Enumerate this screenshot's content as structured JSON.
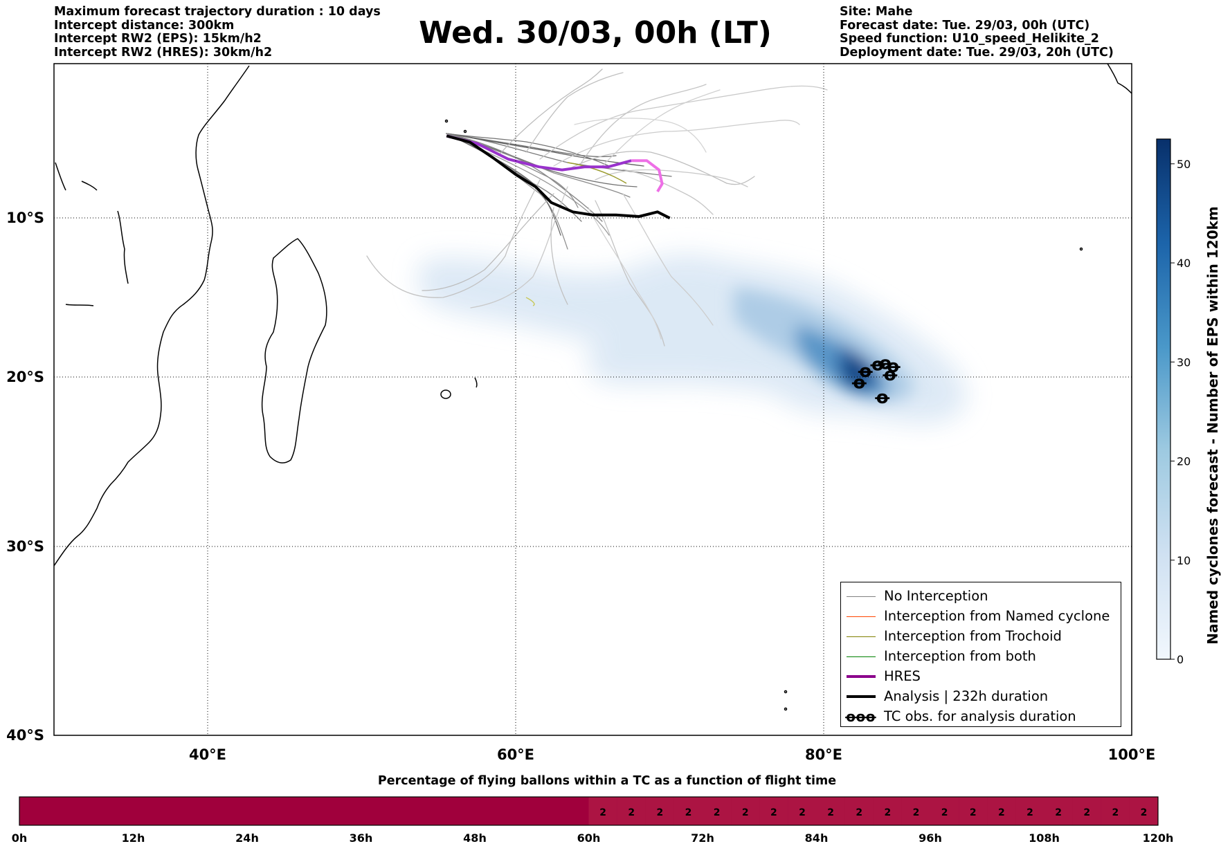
{
  "header": {
    "left_lines": [
      "Maximum forecast trajectory duration : 10 days",
      "Intercept distance: 300km",
      "Intercept RW2 (EPS):  15km/h2",
      "Intercept RW2 (HRES): 30km/h2"
    ],
    "title": "Wed. 30/03, 00h (LT)",
    "right_lines": [
      "Site: Mahe",
      "Forecast date: Tue. 29/03, 00h (UTC)",
      "Speed function: U10_speed_Helikite_2",
      "Deployment date: Tue. 29/03, 20h (UTC)"
    ]
  },
  "map": {
    "lon_ticks": [
      "40°E",
      "60°E",
      "80°E",
      "100°E"
    ],
    "lat_ticks": [
      "10°S",
      "20°S",
      "30°S",
      "40°S"
    ]
  },
  "legend": {
    "items": [
      {
        "label": "No Interception",
        "color": "#808080",
        "symbol": "line"
      },
      {
        "label": "Interception from Named cyclone",
        "color": "#ff4500",
        "symbol": "line"
      },
      {
        "label": "Interception from Trochoid",
        "color": "#808000",
        "symbol": "line"
      },
      {
        "label": "Interception from both",
        "color": "#008000",
        "symbol": "line"
      },
      {
        "label": "HRES",
        "color": "#8b008b",
        "symbol": "thick"
      },
      {
        "label": "Analysis | 232h duration",
        "color": "#000000",
        "symbol": "thick"
      },
      {
        "label": "TC obs. for analysis duration",
        "color": "#000000",
        "symbol": "ꝋꝋꝋ"
      }
    ]
  },
  "colorbar": {
    "label": "Named cyclones forecast - Number of EPS within 120km",
    "ticks": [
      "0",
      "10",
      "20",
      "30",
      "40",
      "50"
    ],
    "colors": {
      "low": "#f1f7fd",
      "high": "#08306b"
    }
  },
  "bottom_bar": {
    "title": "Percentage of flying ballons within a TC as a function of flight time",
    "tick_labels": [
      "0h",
      "12h",
      "24h",
      "36h",
      "48h",
      "60h",
      "72h",
      "84h",
      "96h",
      "108h",
      "120h"
    ],
    "cell_values": [
      "2",
      "2",
      "2",
      "2",
      "2",
      "2",
      "2",
      "2",
      "2",
      "2",
      "2",
      "2",
      "2",
      "2",
      "2",
      "2",
      "2",
      "2",
      "2",
      "2"
    ],
    "colors": {
      "dark": "#a0003c",
      "light": "#ac1443"
    }
  },
  "chart_data": [
    {
      "type": "map",
      "title": "Wed. 30/03, 00h (LT)",
      "xlim_lon": [
        30,
        100
      ],
      "ylim_lat": [
        -40,
        0
      ],
      "x_ticks": [
        40,
        60,
        80,
        100
      ],
      "y_ticks": [
        -10,
        -20,
        -30,
        -40
      ],
      "grid": true,
      "legend_position": "bottom-right",
      "series": [
        {
          "name": "HRES",
          "lon": [
            55.5,
            57.5,
            59.5,
            61.5,
            63,
            64.5,
            66,
            67.5,
            68.5,
            69.3,
            69.5,
            69.2
          ],
          "lat": [
            -4.7,
            -5.2,
            -6.2,
            -6.7,
            -6.9,
            -6.7,
            -6.7,
            -6.3,
            -6.3,
            -6.9,
            -7.8,
            -8.3
          ]
        },
        {
          "name": "Analysis | 232h duration",
          "lon": [
            55.5,
            57,
            58.5,
            60,
            61.3,
            62.3,
            63.7,
            65,
            66.5,
            68,
            69.2,
            70
          ],
          "lat": [
            -4.7,
            -5.1,
            -6.1,
            -7.2,
            -8.0,
            -9.0,
            -9.6,
            -9.8,
            -9.8,
            -9.9,
            -9.6,
            -10.0
          ]
        },
        {
          "name": "TC obs. for analysis duration",
          "lon": [
            82.3,
            82.7,
            83.5,
            84,
            84.5,
            84.3,
            83.8
          ],
          "lat": [
            -20.3,
            -19.6,
            -19.2,
            -19.1,
            -19.3,
            -19.8,
            -21.2
          ]
        }
      ]
    },
    {
      "type": "bar",
      "title": "Percentage of flying ballons within a TC as a function of flight time",
      "x_ticks": [
        "0h",
        "12h",
        "24h",
        "36h",
        "48h",
        "60h",
        "72h",
        "84h",
        "96h",
        "108h",
        "120h"
      ],
      "x": [
        60,
        63,
        66,
        69,
        72,
        75,
        78,
        81,
        84,
        87,
        90,
        93,
        96,
        99,
        102,
        105,
        108,
        111,
        114,
        117
      ],
      "values": [
        2,
        2,
        2,
        2,
        2,
        2,
        2,
        2,
        2,
        2,
        2,
        2,
        2,
        2,
        2,
        2,
        2,
        2,
        2,
        2
      ]
    }
  ]
}
